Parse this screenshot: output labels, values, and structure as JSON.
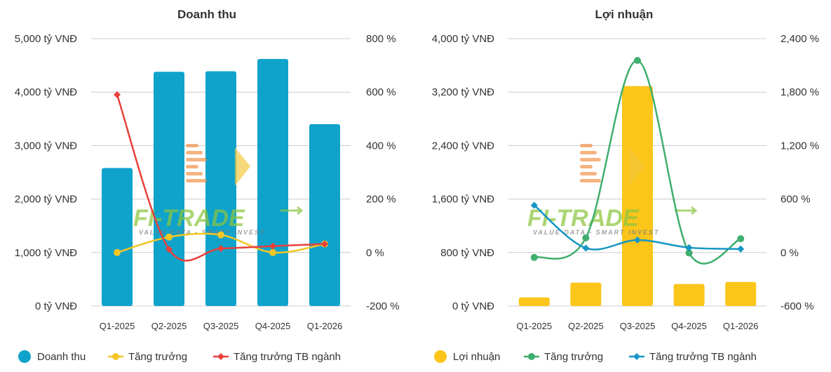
{
  "watermark": {
    "brand": "FI-TRADE",
    "tagline": "VALUE DATA - SMART INVEST"
  },
  "chart_data": [
    {
      "type": "bar",
      "title": "Doanh thu",
      "categories": [
        "Q1-2025",
        "Q2-2025",
        "Q3-2025",
        "Q4-2025",
        "Q1-2026"
      ],
      "y_left": {
        "min": 0,
        "max": 5000,
        "ticks": [
          "0 tỷ VNĐ",
          "1,000 tỷ VNĐ",
          "2,000 tỷ VNĐ",
          "3,000 tỷ VNĐ",
          "4,000 tỷ VNĐ",
          "5,000 tỷ VNĐ"
        ]
      },
      "y_right": {
        "min": -200,
        "max": 800,
        "ticks": [
          "-200 %",
          "0 %",
          "200 %",
          "400 %",
          "600 %",
          "800 %"
        ]
      },
      "series": [
        {
          "name": "Doanh thu",
          "kind": "bar",
          "axis": "left",
          "color": "#0fa3cc",
          "marker": "circle",
          "values": [
            2580,
            4380,
            4390,
            4620,
            3400
          ]
        },
        {
          "name": "Tăng trưởng",
          "kind": "line",
          "axis": "right",
          "color": "#f2c624",
          "marker": "circle",
          "values": [
            0,
            58,
            66,
            0,
            32
          ]
        },
        {
          "name": "Tăng trưởng TB ngành",
          "kind": "line",
          "axis": "right",
          "color": "#e8403a",
          "marker": "diamond",
          "values": [
            590,
            12,
            15,
            24,
            32
          ]
        }
      ],
      "legend": "bottom",
      "grid": true
    },
    {
      "type": "bar",
      "title": "Lợi nhuận",
      "categories": [
        "Q1-2025",
        "Q2-2025",
        "Q3-2025",
        "Q4-2025",
        "Q1-2026"
      ],
      "y_left": {
        "min": 0,
        "max": 4000,
        "ticks": [
          "0 tỷ VNĐ",
          "800 tỷ VNĐ",
          "1,600 tỷ VNĐ",
          "2,400 tỷ VNĐ",
          "3,200 tỷ VNĐ",
          "4,000 tỷ VNĐ"
        ]
      },
      "y_right": {
        "min": -600,
        "max": 2400,
        "ticks": [
          "-600 %",
          "0 %",
          "600 %",
          "1,200 %",
          "1,800 %",
          "2,400 %"
        ]
      },
      "series": [
        {
          "name": "Lợi nhuận",
          "kind": "bar",
          "axis": "left",
          "color": "#fbc51a",
          "marker": "circle",
          "values": [
            130,
            350,
            3290,
            330,
            360
          ]
        },
        {
          "name": "Tăng trưởng",
          "kind": "line",
          "axis": "right",
          "color": "#3fae6e",
          "marker": "circle",
          "values": [
            -55,
            165,
            2155,
            -5,
            155
          ]
        },
        {
          "name": "Tăng trưởng TB ngành",
          "kind": "line",
          "axis": "right",
          "color": "#1596c4",
          "marker": "diamond",
          "values": [
            530,
            50,
            140,
            55,
            40
          ]
        }
      ],
      "legend": "bottom",
      "grid": true
    }
  ]
}
